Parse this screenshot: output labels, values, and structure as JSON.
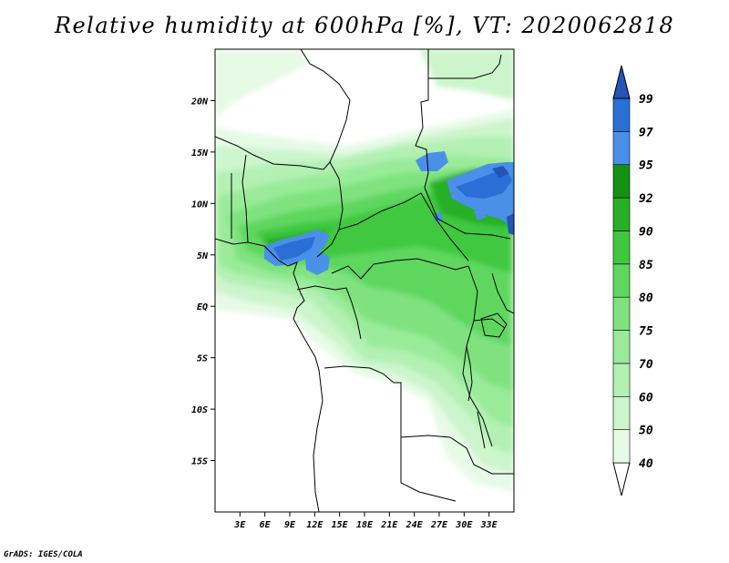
{
  "title": "Relative humidity at 600hPa [%], VT: 2020062818",
  "credit": "GrADS: IGES/COLA",
  "map": {
    "lon_range": [
      0,
      36
    ],
    "lat_range": [
      -20,
      25
    ],
    "lon_ticks": [
      "3E",
      "6E",
      "9E",
      "12E",
      "15E",
      "18E",
      "21E",
      "24E",
      "27E",
      "30E",
      "33E"
    ],
    "lat_ticks": [
      "20N",
      "15N",
      "10N",
      "5N",
      "EQ",
      "5S",
      "10S",
      "15S"
    ]
  },
  "colorbar": {
    "levels": [
      "40",
      "50",
      "60",
      "70",
      "75",
      "80",
      "85",
      "90",
      "92",
      "95",
      "97",
      "99"
    ],
    "colors": [
      "#ffffff",
      "#e6fae6",
      "#ccf5cc",
      "#b3f0b3",
      "#99eb99",
      "#7fe27f",
      "#5ed75e",
      "#3fc83f",
      "#27b027",
      "#139213",
      "#4a90e8",
      "#2a6fd6",
      "#2255b5"
    ]
  }
}
